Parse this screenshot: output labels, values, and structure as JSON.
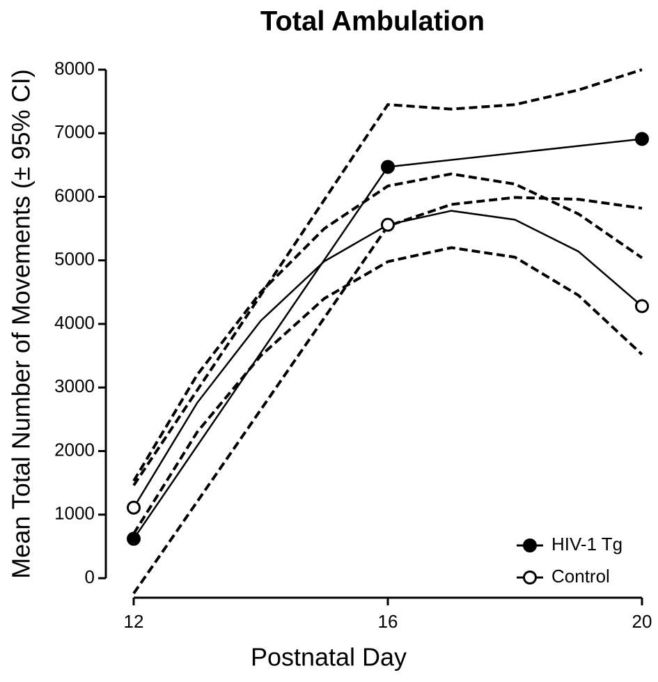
{
  "chart_data": {
    "type": "line",
    "title": "Total Ambulation",
    "x_label": "Postnatal Day",
    "y_label": "Mean Total Number of Movements (± 95% CI)",
    "xlim": [
      12,
      20
    ],
    "xticks": [
      12,
      16,
      20
    ],
    "ylim": [
      0,
      8000
    ],
    "yticks": [
      0,
      1000,
      2000,
      3000,
      4000,
      5000,
      6000,
      7000,
      8000
    ],
    "legend": "lower right",
    "series": [
      {
        "name": "HIV-1 Tg",
        "color": "#000000",
        "marker_fill": "#000000",
        "x": [
          12,
          16,
          20
        ],
        "values": [
          620,
          6470,
          6910
        ],
        "marked": [
          true,
          true,
          true
        ],
        "ci_x": [
          12,
          16,
          17,
          18,
          19,
          20
        ],
        "ci_upper": [
          1460,
          7450,
          7380,
          7450,
          7680,
          8000
        ],
        "ci_lower": [
          -240,
          5540,
          5880,
          5990,
          5960,
          5820
        ]
      },
      {
        "name": "Control",
        "color": "#000000",
        "marker_fill": "#ffffff",
        "x": [
          12,
          13,
          14,
          15,
          16,
          17,
          18,
          19,
          20
        ],
        "values": [
          1110,
          2760,
          4050,
          4985,
          5560,
          5780,
          5640,
          5140,
          4280
        ],
        "marked": [
          true,
          false,
          false,
          false,
          true,
          false,
          false,
          false,
          true
        ],
        "ci_x": [
          12,
          13,
          14,
          15,
          16,
          17,
          18,
          19,
          20
        ],
        "ci_upper": [
          1530,
          3200,
          4500,
          5500,
          6170,
          6360,
          6200,
          5730,
          5040
        ],
        "ci_lower": [
          700,
          2300,
          3500,
          4400,
          4980,
          5200,
          5050,
          4450,
          3520
        ]
      }
    ]
  }
}
